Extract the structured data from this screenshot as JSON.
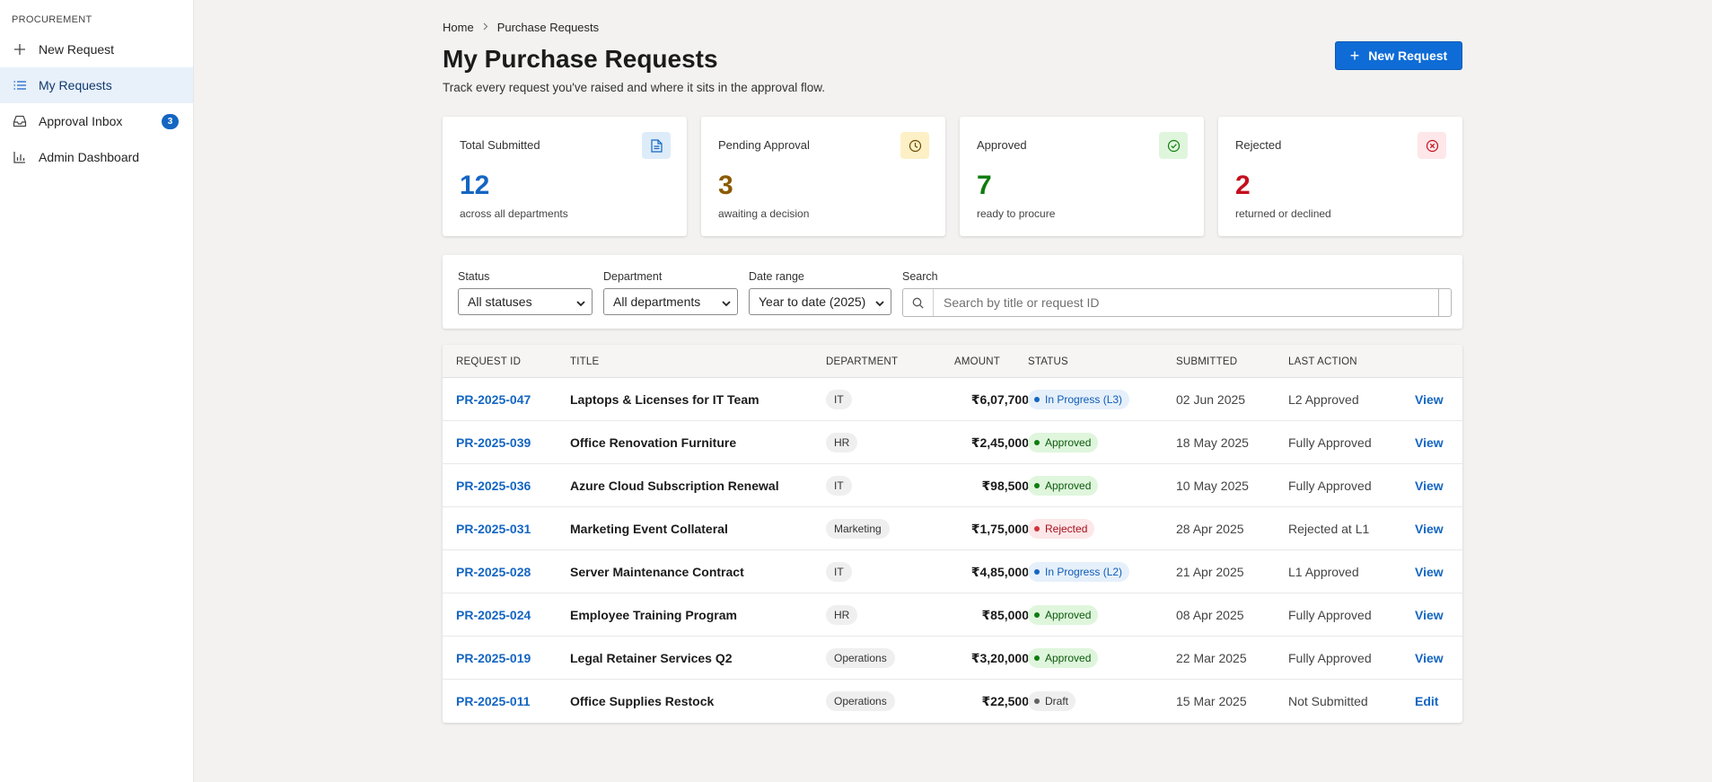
{
  "sidebar": {
    "section": "PROCUREMENT",
    "items": [
      {
        "label": "New Request"
      },
      {
        "label": "My Requests"
      },
      {
        "label": "Approval Inbox",
        "badge": "3"
      },
      {
        "label": "Admin Dashboard"
      }
    ]
  },
  "breadcrumb": {
    "home": "Home",
    "current": "Purchase Requests"
  },
  "header": {
    "title": "My Purchase Requests",
    "subtitle": "Track every request you've raised and where it sits in the approval flow.",
    "new_button": "New Request"
  },
  "cards": [
    {
      "label": "Total Submitted",
      "value": "12",
      "note": "across all departments",
      "color": "#1466c2",
      "icon": "document-icon"
    },
    {
      "label": "Pending Approval",
      "value": "3",
      "note": "awaiting a decision",
      "color": "#8a5a00",
      "icon": "clock-icon"
    },
    {
      "label": "Approved",
      "value": "7",
      "note": "ready to procure",
      "color": "#107c10",
      "icon": "check-circle-icon"
    },
    {
      "label": "Rejected",
      "value": "2",
      "note": "returned or declined",
      "color": "#c50f1f",
      "icon": "x-circle-icon"
    }
  ],
  "filters": {
    "status": {
      "label": "Status",
      "value": "All statuses"
    },
    "department": {
      "label": "Department",
      "value": "All departments"
    },
    "date_range": {
      "label": "Date range",
      "value": "Year to date (2025)"
    },
    "search": {
      "label": "Search",
      "placeholder": "Search by title or request ID"
    }
  },
  "table": {
    "headers": {
      "id": "REQUEST ID",
      "title": "TITLE",
      "department": "DEPARTMENT",
      "amount": "AMOUNT",
      "status": "STATUS",
      "submitted": "SUBMITTED",
      "last_action": "LAST ACTION"
    },
    "rows": [
      {
        "id": "PR-2025-047",
        "title": "Laptops & Licenses for IT Team",
        "department": "IT",
        "amount": "₹6,07,700",
        "status": "In Progress (L3)",
        "status_kind": "progress",
        "submitted": "02 Jun 2025",
        "last_action": "L2 Approved",
        "action": "View"
      },
      {
        "id": "PR-2025-039",
        "title": "Office Renovation Furniture",
        "department": "HR",
        "amount": "₹2,45,000",
        "status": "Approved",
        "status_kind": "approved",
        "submitted": "18 May 2025",
        "last_action": "Fully Approved",
        "action": "View"
      },
      {
        "id": "PR-2025-036",
        "title": "Azure Cloud Subscription Renewal",
        "department": "IT",
        "amount": "₹98,500",
        "status": "Approved",
        "status_kind": "approved",
        "submitted": "10 May 2025",
        "last_action": "Fully Approved",
        "action": "View"
      },
      {
        "id": "PR-2025-031",
        "title": "Marketing Event Collateral",
        "department": "Marketing",
        "amount": "₹1,75,000",
        "status": "Rejected",
        "status_kind": "rejected",
        "submitted": "28 Apr 2025",
        "last_action": "Rejected at L1",
        "action": "View"
      },
      {
        "id": "PR-2025-028",
        "title": "Server Maintenance Contract",
        "department": "IT",
        "amount": "₹4,85,000",
        "status": "In Progress (L2)",
        "status_kind": "progress",
        "submitted": "21 Apr 2025",
        "last_action": "L1 Approved",
        "action": "View"
      },
      {
        "id": "PR-2025-024",
        "title": "Employee Training Program",
        "department": "HR",
        "amount": "₹85,000",
        "status": "Approved",
        "status_kind": "approved",
        "submitted": "08 Apr 2025",
        "last_action": "Fully Approved",
        "action": "View"
      },
      {
        "id": "PR-2025-019",
        "title": "Legal Retainer Services Q2",
        "department": "Operations",
        "amount": "₹3,20,000",
        "status": "Approved",
        "status_kind": "approved",
        "submitted": "22 Mar 2025",
        "last_action": "Fully Approved",
        "action": "View"
      },
      {
        "id": "PR-2025-011",
        "title": "Office Supplies Restock",
        "department": "Operations",
        "amount": "₹22,500",
        "status": "Draft",
        "status_kind": "draft",
        "submitted": "15 Mar 2025",
        "last_action": "Not Submitted",
        "action": "Edit"
      }
    ]
  }
}
